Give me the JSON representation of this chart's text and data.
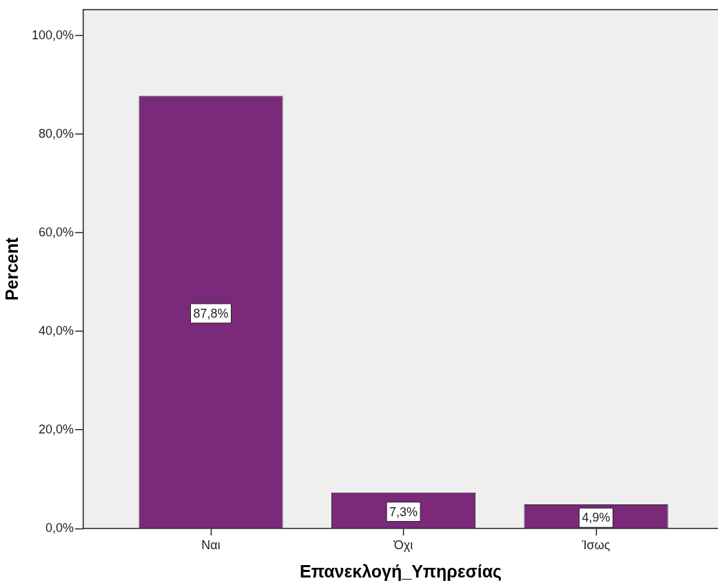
{
  "chart_data": {
    "type": "bar",
    "xlabel": "Επανεκλογή_Υπηρεσίας",
    "ylabel": "Percent",
    "categories": [
      "Ναι",
      "Όχι",
      "Ίσως"
    ],
    "values": [
      87.8,
      7.3,
      4.9
    ],
    "color": "#7b297b",
    "value_labels": [
      "87,8%",
      "7,3%",
      "4,9%"
    ],
    "ylim": [
      0,
      105.3
    ],
    "yticks": [
      {
        "value": 0,
        "label": "0,0%"
      },
      {
        "value": 20,
        "label": "20,0%"
      },
      {
        "value": 40,
        "label": "40,0%"
      },
      {
        "value": 60,
        "label": "60,0%"
      },
      {
        "value": 80,
        "label": "80,0%"
      },
      {
        "value": 100,
        "label": "100,0%"
      }
    ],
    "grid": false,
    "legend": false
  }
}
